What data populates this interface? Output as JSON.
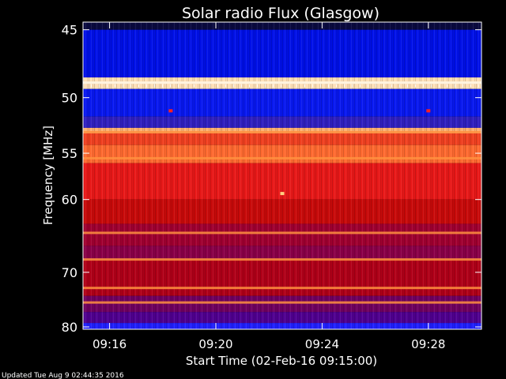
{
  "chart_data": {
    "type": "heatmap",
    "title": "Solar radio Flux (Glasgow)",
    "xlabel": "Start Time (02-Feb-16 09:15:00)",
    "ylabel": "Frequency [MHz]",
    "x_ticks": [
      {
        "t": "09:16:00",
        "label": "09:16"
      },
      {
        "t": "09:20:00",
        "label": "09:20"
      },
      {
        "t": "09:24:00",
        "label": "09:24"
      },
      {
        "t": "09:28:00",
        "label": "09:28"
      }
    ],
    "y_ticks": [
      45,
      50,
      55,
      60,
      70,
      80
    ],
    "x_range": [
      "09:15:00",
      "09:30:00"
    ],
    "y_range_mhz": [
      44.5,
      80.5
    ],
    "y_scale": "reciprocal (frequency increases downward)",
    "colormap": [
      "#0000c8",
      "#2020ff",
      "#7a0050",
      "#b00000",
      "#e81010",
      "#ff4d10",
      "#ff9a3a",
      "#ffd0a0"
    ],
    "bands": [
      {
        "f_from": 44.5,
        "f_to": 45.0,
        "color": "#0a0a40"
      },
      {
        "f_from": 45.0,
        "f_to": 48.4,
        "color": "#0010e8"
      },
      {
        "f_from": 48.4,
        "f_to": 49.3,
        "color": "#ffe0b8"
      },
      {
        "f_from": 49.3,
        "f_to": 51.6,
        "color": "#0818f0"
      },
      {
        "f_from": 51.6,
        "f_to": 52.6,
        "color": "#3020c0"
      },
      {
        "f_from": 52.6,
        "f_to": 53.1,
        "color": "#ffb070"
      },
      {
        "f_from": 53.1,
        "f_to": 54.2,
        "color": "#f04020"
      },
      {
        "f_from": 54.2,
        "f_to": 56.0,
        "color": "#ff6a30"
      },
      {
        "f_from": 56.0,
        "f_to": 60.0,
        "color": "#e81818"
      },
      {
        "f_from": 60.0,
        "f_to": 63.0,
        "color": "#c80a0a"
      },
      {
        "f_from": 63.0,
        "f_to": 66.0,
        "color": "#a00030"
      },
      {
        "f_from": 66.0,
        "f_to": 68.0,
        "color": "#8a0048"
      },
      {
        "f_from": 68.0,
        "f_to": 74.0,
        "color": "#b00018"
      },
      {
        "f_from": 74.0,
        "f_to": 77.0,
        "color": "#700060"
      },
      {
        "f_from": 77.0,
        "f_to": 79.2,
        "color": "#500090"
      },
      {
        "f_from": 79.2,
        "f_to": 80.5,
        "color": "#2020ff"
      }
    ],
    "bright_lines_mhz": [
      48.8,
      53.0,
      55.5,
      64.2,
      68.0,
      72.6,
      75.2
    ],
    "spots": [
      {
        "t": "09:18:18",
        "f": 51.1,
        "color": "#ff2020"
      },
      {
        "t": "09:22:30",
        "f": 59.3,
        "color": "#ffd080"
      },
      {
        "t": "09:28:00",
        "f": 51.1,
        "color": "#ff2020"
      }
    ],
    "footer": "Updated Tue Aug  9 02:44:35 2016"
  }
}
